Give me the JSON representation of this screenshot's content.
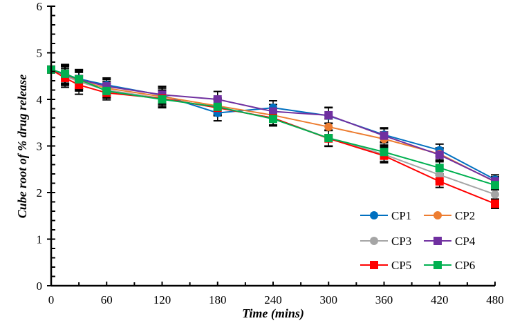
{
  "chart_data": {
    "type": "line",
    "title": "",
    "xlabel": "Time (mins)",
    "ylabel": "Cube root of % drug release",
    "xlim": [
      0,
      480
    ],
    "ylim": [
      0,
      6
    ],
    "x_ticks": [
      0,
      60,
      120,
      180,
      240,
      300,
      360,
      420,
      480
    ],
    "x_tick_labels": [
      "0",
      "60",
      "120",
      "180",
      "240",
      "300",
      "360",
      "420",
      "480"
    ],
    "y_ticks": [
      0,
      1,
      2,
      3,
      4,
      5,
      6
    ],
    "y_tick_labels": [
      "0",
      "1",
      "2",
      "3",
      "4",
      "5",
      "6"
    ],
    "x_minor_step": 30,
    "y_minor_step": 0.2,
    "grid": false,
    "legend_position": "bottom-right",
    "x": [
      0,
      15,
      30,
      60,
      120,
      180,
      240,
      300,
      360,
      420,
      480
    ],
    "series": [
      {
        "name": "CP1",
        "color": "#0070C0",
        "marker": "circle",
        "values": [
          4.64,
          4.54,
          4.44,
          4.31,
          4.09,
          3.71,
          3.82,
          3.65,
          3.24,
          2.91,
          2.28
        ],
        "error": [
          0.0,
          0.2,
          0.2,
          0.15,
          0.18,
          0.17,
          0.15,
          0.17,
          0.15,
          0.13,
          0.1
        ]
      },
      {
        "name": "CP2",
        "color": "#ED7D31",
        "marker": "circle",
        "values": [
          4.64,
          4.52,
          4.4,
          4.24,
          4.06,
          3.86,
          3.66,
          3.41,
          3.15,
          2.83,
          2.23
        ],
        "error": [
          0.0,
          0.2,
          0.2,
          0.15,
          0.18,
          0.17,
          0.15,
          0.17,
          0.15,
          0.13,
          0.1
        ]
      },
      {
        "name": "CP3",
        "color": "#A5A5A5",
        "marker": "circle",
        "values": [
          4.64,
          4.5,
          4.38,
          4.2,
          4.02,
          3.82,
          3.6,
          3.17,
          2.82,
          2.38,
          1.96
        ],
        "error": [
          0.0,
          0.2,
          0.2,
          0.15,
          0.18,
          0.17,
          0.15,
          0.17,
          0.15,
          0.13,
          0.1
        ]
      },
      {
        "name": "CP4",
        "color": "#7030A0",
        "marker": "square",
        "values": [
          4.64,
          4.53,
          4.43,
          4.28,
          4.1,
          4.0,
          3.74,
          3.66,
          3.22,
          2.81,
          2.24
        ],
        "error": [
          0.0,
          0.2,
          0.2,
          0.15,
          0.18,
          0.17,
          0.15,
          0.17,
          0.15,
          0.13,
          0.1
        ]
      },
      {
        "name": "CP5",
        "color": "#FF0000",
        "marker": "square",
        "values": [
          4.64,
          4.46,
          4.31,
          4.14,
          4.02,
          3.82,
          3.6,
          3.16,
          2.79,
          2.24,
          1.76
        ],
        "error": [
          0.0,
          0.2,
          0.2,
          0.15,
          0.18,
          0.17,
          0.15,
          0.17,
          0.15,
          0.13,
          0.1
        ]
      },
      {
        "name": "CP6",
        "color": "#00B050",
        "marker": "square",
        "values": [
          4.64,
          4.55,
          4.43,
          4.18,
          4.0,
          3.84,
          3.58,
          3.17,
          2.87,
          2.53,
          2.16
        ],
        "error": [
          0.0,
          0.2,
          0.2,
          0.15,
          0.18,
          0.17,
          0.15,
          0.17,
          0.15,
          0.13,
          0.1
        ]
      }
    ]
  }
}
